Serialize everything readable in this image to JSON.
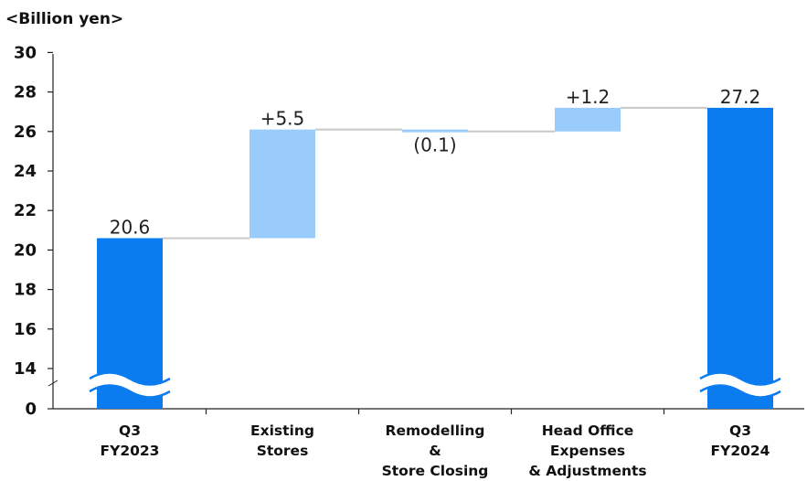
{
  "chart_data": {
    "type": "bar",
    "subtype": "waterfall",
    "unit_label": "<Billion yen>",
    "y_ticks": [
      "0",
      "14",
      "16",
      "18",
      "20",
      "22",
      "24",
      "26",
      "28",
      "30"
    ],
    "axis_break": {
      "below": 14,
      "tick_below_break": 0
    },
    "ylim": [
      14,
      30
    ],
    "steps": [
      {
        "category": "Q3 FY2023",
        "label_lines": [
          "Q3",
          "FY2023"
        ],
        "kind": "total",
        "start": 0,
        "end": 20.6,
        "value_label": "20.6"
      },
      {
        "category": "Existing Stores",
        "label_lines": [
          "Existing",
          "Stores"
        ],
        "kind": "delta",
        "start": 20.6,
        "end": 26.1,
        "value_label": "+5.5"
      },
      {
        "category": "Remodelling & Store Closing",
        "label_lines": [
          "Remodelling",
          "&",
          "Store Closing"
        ],
        "kind": "delta",
        "start": 26.1,
        "end": 26.0,
        "value_label": "(0.1)"
      },
      {
        "category": "Head Office Expenses & Adjustments",
        "label_lines": [
          "Head Office",
          "Expenses",
          "& Adjustments"
        ],
        "kind": "delta",
        "start": 26.0,
        "end": 27.2,
        "value_label": "+1.2"
      },
      {
        "category": "Q3 FY2024",
        "label_lines": [
          "Q3",
          "FY2024"
        ],
        "kind": "total",
        "start": 0,
        "end": 27.2,
        "value_label": "27.2"
      }
    ],
    "colors": {
      "total": "#0a7cf0",
      "delta": "#99ccfb",
      "connector": "#c8c8c8",
      "axis": "#222222"
    },
    "grid": false
  }
}
